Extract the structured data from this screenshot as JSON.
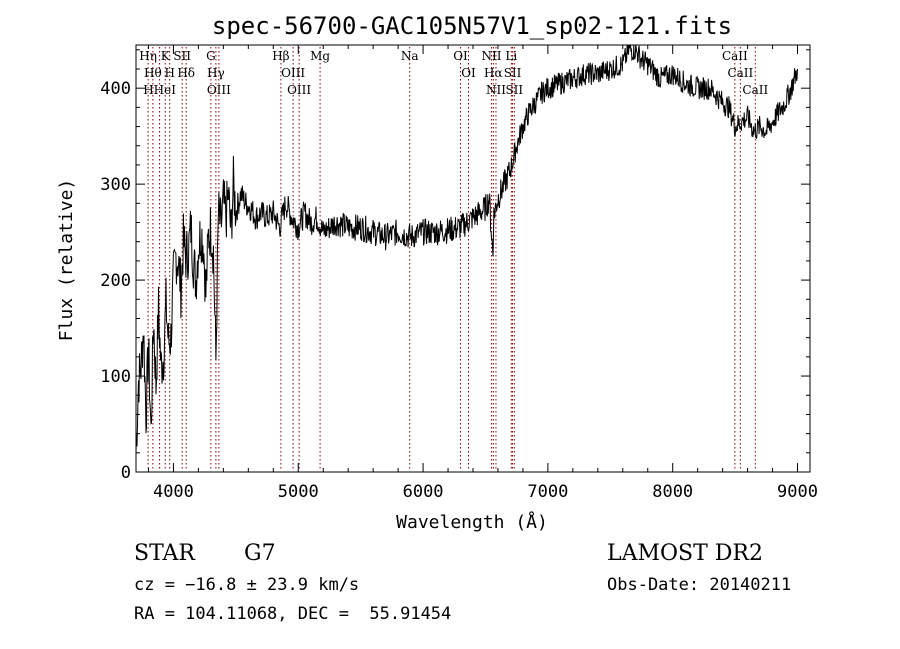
{
  "chart_data": {
    "type": "line",
    "title": "spec-56700-GAC105N57V1_sp02-121.fits",
    "xlabel": "Wavelength (Å)",
    "ylabel": "Flux (relative)",
    "xlim": [
      3700,
      9100
    ],
    "ylim": [
      0,
      445
    ],
    "x_ticks": [
      4000,
      5000,
      6000,
      7000,
      8000,
      9000
    ],
    "x_tick_labels": [
      "4000",
      "5000",
      "6000",
      "7000",
      "8000",
      "9000"
    ],
    "y_ticks": [
      0,
      100,
      200,
      300,
      400
    ],
    "y_tick_labels": [
      "0",
      "100",
      "200",
      "300",
      "400"
    ],
    "grid": false,
    "line_color": "#000000",
    "marker_color": "#8b0000",
    "series": [
      {
        "x": [
          3700,
          3720,
          3740,
          3760,
          3780,
          3800,
          3820,
          3840,
          3860,
          3880,
          3900,
          3920,
          3940,
          3960,
          3980,
          4000,
          4020,
          4040,
          4060,
          4080,
          4100,
          4120,
          4140,
          4160,
          4180,
          4200,
          4220,
          4240,
          4260,
          4280,
          4300,
          4320,
          4340,
          4360,
          4380,
          4400,
          4420,
          4440,
          4460,
          4480,
          4500,
          4540,
          4580,
          4620,
          4660,
          4700,
          4750,
          4800,
          4850,
          4900,
          4950,
          5000,
          5050,
          5100,
          5150,
          5200,
          5300,
          5400,
          5500,
          5600,
          5700,
          5800,
          5900,
          6000,
          6100,
          6200,
          6300,
          6350,
          6400,
          6450,
          6500,
          6530,
          6560,
          6565,
          6570,
          6600,
          6650,
          6700,
          6750,
          6800,
          6850,
          6900,
          6950,
          7000,
          7100,
          7200,
          7300,
          7400,
          7500,
          7600,
          7650,
          7700,
          7750,
          7800,
          7900,
          8000,
          8100,
          8200,
          8300,
          8400,
          8450,
          8500,
          8550,
          8600,
          8650,
          8700,
          8750,
          8800,
          8850,
          8900,
          8950,
          9000
        ],
        "y": [
          20,
          95,
          110,
          150,
          60,
          130,
          40,
          160,
          90,
          170,
          110,
          120,
          175,
          135,
          140,
          200,
          225,
          220,
          190,
          240,
          225,
          230,
          255,
          220,
          200,
          235,
          250,
          240,
          185,
          245,
          255,
          230,
          115,
          270,
          255,
          280,
          265,
          290,
          250,
          300,
          270,
          290,
          280,
          275,
          265,
          270,
          265,
          270,
          255,
          280,
          265,
          255,
          270,
          260,
          265,
          250,
          260,
          255,
          255,
          250,
          245,
          250,
          245,
          250,
          250,
          252,
          255,
          260,
          265,
          270,
          275,
          285,
          225,
          265,
          270,
          285,
          300,
          315,
          340,
          360,
          375,
          385,
          395,
          400,
          405,
          410,
          415,
          415,
          420,
          425,
          440,
          440,
          430,
          425,
          410,
          415,
          405,
          400,
          400,
          385,
          380,
          360,
          365,
          370,
          355,
          360,
          355,
          365,
          375,
          385,
          400,
          420
        ]
      }
    ],
    "line_markers": [
      {
        "x": 3797,
        "labels": [
          "Hη"
        ]
      },
      {
        "x": 3835,
        "labels": [
          "Hθ"
        ]
      },
      {
        "x": 3889,
        "labels": [
          "HHeI"
        ]
      },
      {
        "x": 3934,
        "labels": [
          "K"
        ]
      },
      {
        "x": 3970,
        "labels": [
          "H"
        ]
      },
      {
        "x": 4070,
        "labels": [
          "SII"
        ]
      },
      {
        "x": 4102,
        "labels": [
          "Hδ"
        ]
      },
      {
        "x": 4300,
        "labels": [
          "G"
        ]
      },
      {
        "x": 4340,
        "labels": [
          "Hγ"
        ]
      },
      {
        "x": 4364,
        "labels": [
          "OIII"
        ]
      },
      {
        "x": 4861,
        "labels": [
          "Hβ"
        ]
      },
      {
        "x": 4959,
        "labels": [
          "OIII"
        ]
      },
      {
        "x": 5007,
        "labels": [
          "OIII"
        ]
      },
      {
        "x": 5175,
        "labels": [
          "Mg"
        ]
      },
      {
        "x": 5893,
        "labels": [
          "Na"
        ]
      },
      {
        "x": 6300,
        "labels": [
          "OI"
        ]
      },
      {
        "x": 6364,
        "labels": [
          "OI"
        ]
      },
      {
        "x": 6548,
        "labels": [
          "NII"
        ]
      },
      {
        "x": 6563,
        "labels": [
          "Hα"
        ]
      },
      {
        "x": 6584,
        "labels": [
          "NII"
        ]
      },
      {
        "x": 6707,
        "labels": [
          "Li"
        ]
      },
      {
        "x": 6717,
        "labels": [
          "SII"
        ]
      },
      {
        "x": 6731,
        "labels": [
          "SII"
        ]
      },
      {
        "x": 8498,
        "labels": [
          "CaII"
        ]
      },
      {
        "x": 8542,
        "labels": [
          "CaII"
        ]
      },
      {
        "x": 8662,
        "labels": [
          "CaII"
        ]
      }
    ]
  },
  "footer": {
    "object_type": "STAR",
    "subclass": "G7",
    "survey": "LAMOST DR2",
    "cz": "cz = −16.8 ± 23.9 km/s",
    "obs_date": "Obs-Date: 20140211",
    "coords": "RA = 104.11068, DEC =  55.91454"
  }
}
